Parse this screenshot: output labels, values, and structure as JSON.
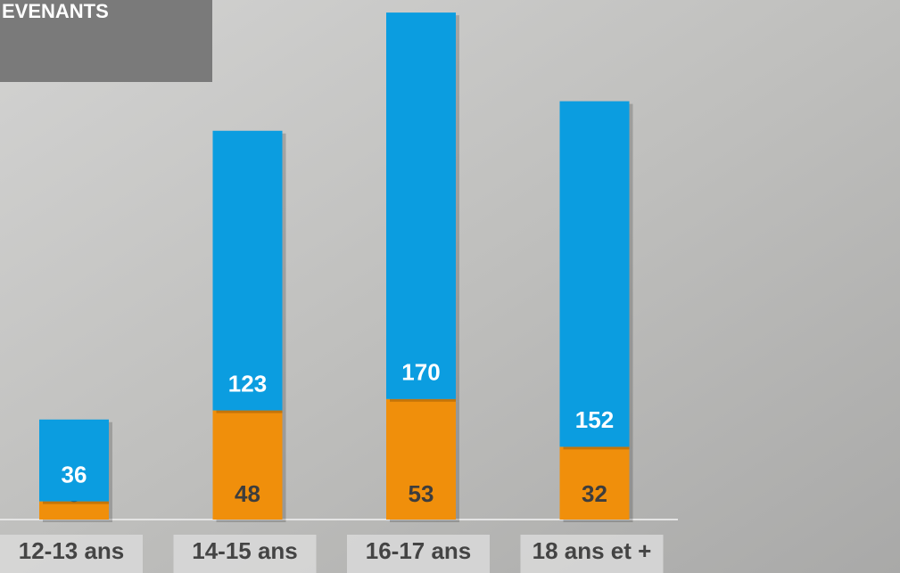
{
  "chart_data": {
    "type": "stacked_bar",
    "title": "EVENANTS",
    "categories": [
      "12-13 ans",
      "14-15 ans",
      "16-17 ans",
      "18 ans et +"
    ],
    "series": [
      {
        "color": "#f08f0b",
        "values": [
          8,
          48,
          53,
          32
        ]
      },
      {
        "color": "#0b9de0",
        "values": [
          36,
          123,
          170,
          152
        ]
      }
    ],
    "ylim": [
      0,
      225
    ]
  }
}
